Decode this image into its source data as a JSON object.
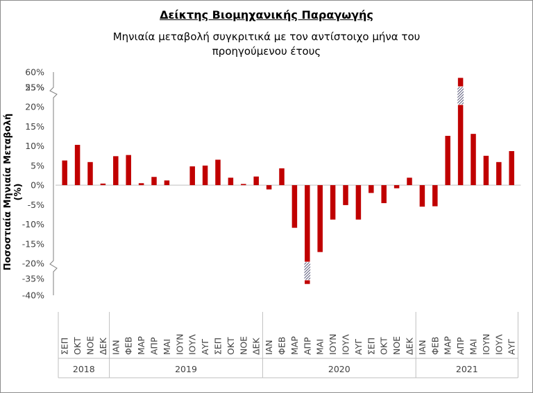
{
  "title": "Δείκτης Βιομηχανικής Παραγωγής",
  "subtitle": "Μηνιαία μεταβολή συγκριτικά με τον αντίστοιχο μήνα του προηγούμενου έτους",
  "colors": {
    "bar": "#c00000",
    "axis": "#404040",
    "grid_lines": "#bfbfbf"
  },
  "chart_data": {
    "type": "bar",
    "title": "Δείκτης Βιομηχανικής Παραγωγής",
    "subtitle": "Μηνιαία μεταβολή συγκριτικά με τον αντίστοιχο μήνα του προηγούμενου έτους",
    "xlabel": "",
    "ylabel": "Ποσοστιαία Μηνιαία Μεταβολή (%)",
    "y_unit": "%",
    "axis_break": "broken y-axis: 25% to 55% and -20% to -35% are cut out",
    "yticks_upper": [
      "60%",
      "55%"
    ],
    "yticks_main": [
      "25%",
      "20%",
      "15%",
      "10%",
      "5%",
      "0%",
      "-5%",
      "-10%",
      "-15%",
      "-20%"
    ],
    "yticks_lower": [
      "-35%",
      "-40%"
    ],
    "categories": [
      "ΣΕΠ",
      "ΟΚΤ",
      "ΝΟΕ",
      "ΔΕΚ",
      "ΙΑΝ",
      "ΦΕΒ",
      "ΜΑΡ",
      "ΑΠΡ",
      "ΜΑΙ",
      "ΙΟΥΝ",
      "ΙΟΥΛ",
      "ΑΥΓ",
      "ΣΕΠ",
      "ΟΚΤ",
      "ΝΟΕ",
      "ΔΕΚ",
      "ΙΑΝ",
      "ΦΕΒ",
      "ΜΑΡ",
      "ΑΠΡ",
      "ΜΑΙ",
      "ΙΟΥΝ",
      "ΙΟΥΛ",
      "ΑΥΓ",
      "ΣΕΠ",
      "ΟΚΤ",
      "ΝΟΕ",
      "ΔΕΚ",
      "ΙΑΝ",
      "ΦΕΒ",
      "ΜΑΡ",
      "ΑΠΡ",
      "ΜΑΙ",
      "ΙΟΥΝ",
      "ΙΟΥΛ",
      "ΑΥΓ"
    ],
    "years": [
      {
        "label": "2018",
        "count": 4
      },
      {
        "label": "2019",
        "count": 12
      },
      {
        "label": "2020",
        "count": 12
      },
      {
        "label": "2021",
        "count": 8
      }
    ],
    "values": [
      6.3,
      10.3,
      5.9,
      0.4,
      7.4,
      7.7,
      0.5,
      2.1,
      1.2,
      0.0,
      4.8,
      5.0,
      6.5,
      1.9,
      0.3,
      2.2,
      -1.1,
      4.3,
      -10.9,
      -36.6,
      -17.1,
      -8.8,
      -5.1,
      -8.8,
      -2.0,
      -4.6,
      -0.8,
      1.9,
      -5.5,
      -5.4,
      12.6,
      58.1,
      13.1,
      7.5,
      5.9,
      8.7
    ]
  }
}
